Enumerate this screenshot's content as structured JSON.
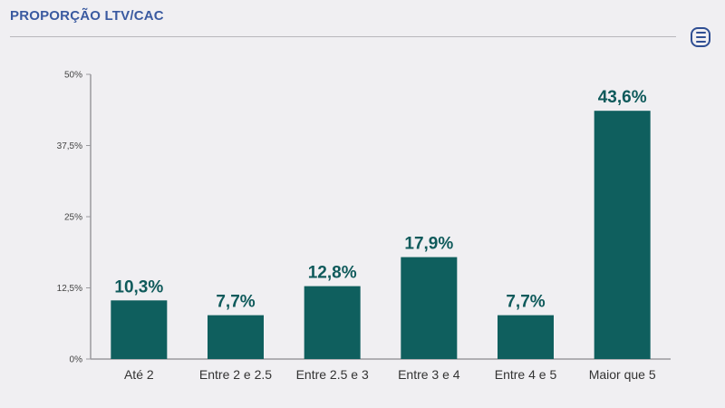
{
  "header": {
    "title": "PROPORÇÃO LTV/CAC",
    "menu_icon": "hamburger-menu-icon"
  },
  "chart_data": {
    "type": "bar",
    "title": "PROPORÇÃO LTV/CAC",
    "categories": [
      "Até 2",
      "Entre 2 e 2.5",
      "Entre 2.5 e 3",
      "Entre 3 e 4",
      "Entre 4 e 5",
      "Maior que 5"
    ],
    "values": [
      10.3,
      7.7,
      12.8,
      17.9,
      7.7,
      43.6
    ],
    "value_labels": [
      "10,3%",
      "7,7%",
      "12,8%",
      "17,9%",
      "7,7%",
      "43,6%"
    ],
    "y_ticks": [
      0,
      12.5,
      25,
      37.5,
      50
    ],
    "y_tick_labels": [
      "0%",
      "12,5%",
      "25%",
      "37,5%",
      "50%"
    ],
    "ylim": [
      0,
      50
    ],
    "xlabel": "",
    "ylabel": "",
    "grid": false,
    "bar_color": "#0f5f5e",
    "label_color": "#0f5a5b"
  }
}
